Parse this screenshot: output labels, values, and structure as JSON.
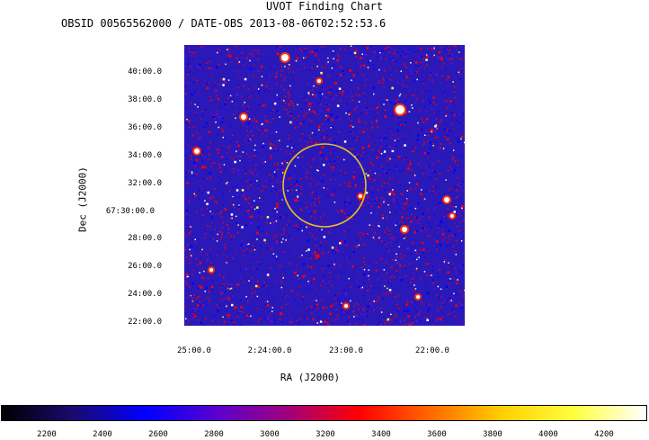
{
  "header": {
    "title": "UVOT Finding Chart",
    "subtitle": "OBSID 00565562000 / DATE-OBS 2013-08-06T02:52:53.6"
  },
  "axes": {
    "xlabel": "RA (J2000)",
    "ylabel": "Dec (J2000)",
    "y_ticks": [
      "40:00.0",
      "38:00.0",
      "36:00.0",
      "34:00.0",
      "32:00.0",
      "67:30:00.0",
      "28:00.0",
      "26:00.0",
      "24:00.0",
      "22:00.0"
    ],
    "x_ticks": [
      "25:00.0",
      "2:24:00.0",
      "23:00.0",
      "22:00.0"
    ]
  },
  "colorbar": {
    "ticks": [
      "2200",
      "2400",
      "2600",
      "2800",
      "3000",
      "3200",
      "3400",
      "3600",
      "3800",
      "4000",
      "4200"
    ],
    "colors": [
      "#000000",
      "#1a0a6e",
      "#0000ff",
      "#5a00d0",
      "#a0007a",
      "#ff0000",
      "#ff6a00",
      "#ffd000",
      "#ffff40",
      "#ffffff"
    ]
  },
  "image": {
    "background": "#2a19b8",
    "circle_color": "#e8c020"
  }
}
